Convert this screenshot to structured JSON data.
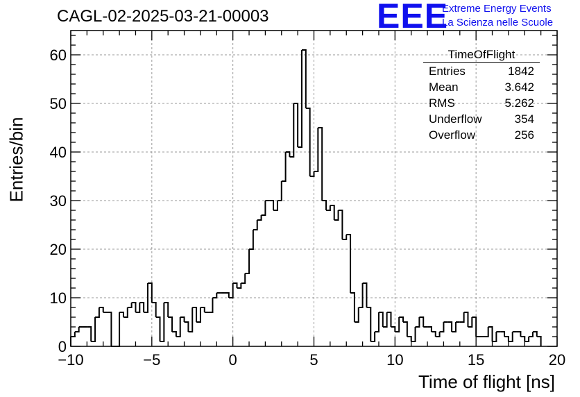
{
  "header": {
    "title": "CAGL-02-2025-03-21-00003"
  },
  "logo": {
    "mark": "EEE",
    "line1": "Extreme Energy Events",
    "line2": "La Scienza nelle Scuole"
  },
  "stats": {
    "name": "TimeOfFlight",
    "rows": [
      {
        "label": "Entries",
        "value": "1842"
      },
      {
        "label": "Mean",
        "value": "3.642"
      },
      {
        "label": "RMS",
        "value": "5.262"
      },
      {
        "label": "Underflow",
        "value": "354"
      },
      {
        "label": "Overflow",
        "value": "256"
      }
    ]
  },
  "chart_data": {
    "type": "bar",
    "histogram": true,
    "title": "CAGL-02-2025-03-21-00003",
    "xlabel": "Time of flight [ns]",
    "ylabel": "Entries/bin",
    "xlim": [
      -10,
      20
    ],
    "ylim": [
      0,
      65
    ],
    "bin_start": -10,
    "bin_width": 0.25,
    "values": [
      2,
      3,
      4,
      4,
      4,
      1,
      6,
      8,
      7,
      7,
      0,
      0,
      7,
      6,
      8,
      9,
      7,
      9,
      7,
      13,
      9,
      6,
      1,
      9,
      6,
      3,
      2,
      6,
      5,
      3,
      8,
      5,
      8,
      7,
      7,
      10,
      11,
      11,
      11,
      10,
      13,
      12,
      13,
      15,
      20,
      24,
      26,
      27,
      30,
      30,
      28,
      30,
      34,
      40,
      39,
      50,
      41,
      61,
      49,
      35,
      36,
      45,
      30,
      28,
      29,
      26,
      28,
      22,
      23,
      11,
      5,
      8,
      13,
      8,
      1,
      3,
      7,
      4,
      7,
      4,
      3,
      6,
      5,
      2,
      1,
      4,
      6,
      4,
      4,
      3,
      2,
      3,
      5,
      5,
      3,
      5,
      5,
      7,
      4,
      6,
      2,
      2,
      2,
      4,
      1,
      3,
      3,
      2,
      1,
      3,
      3,
      2,
      1,
      2,
      3,
      2
    ],
    "xticks": [
      -10,
      -5,
      0,
      5,
      10,
      15,
      20
    ],
    "yticks": [
      0,
      10,
      20,
      30,
      40,
      50,
      60
    ],
    "grid": true,
    "line_color": "#000000",
    "stats_box": "top-right"
  }
}
